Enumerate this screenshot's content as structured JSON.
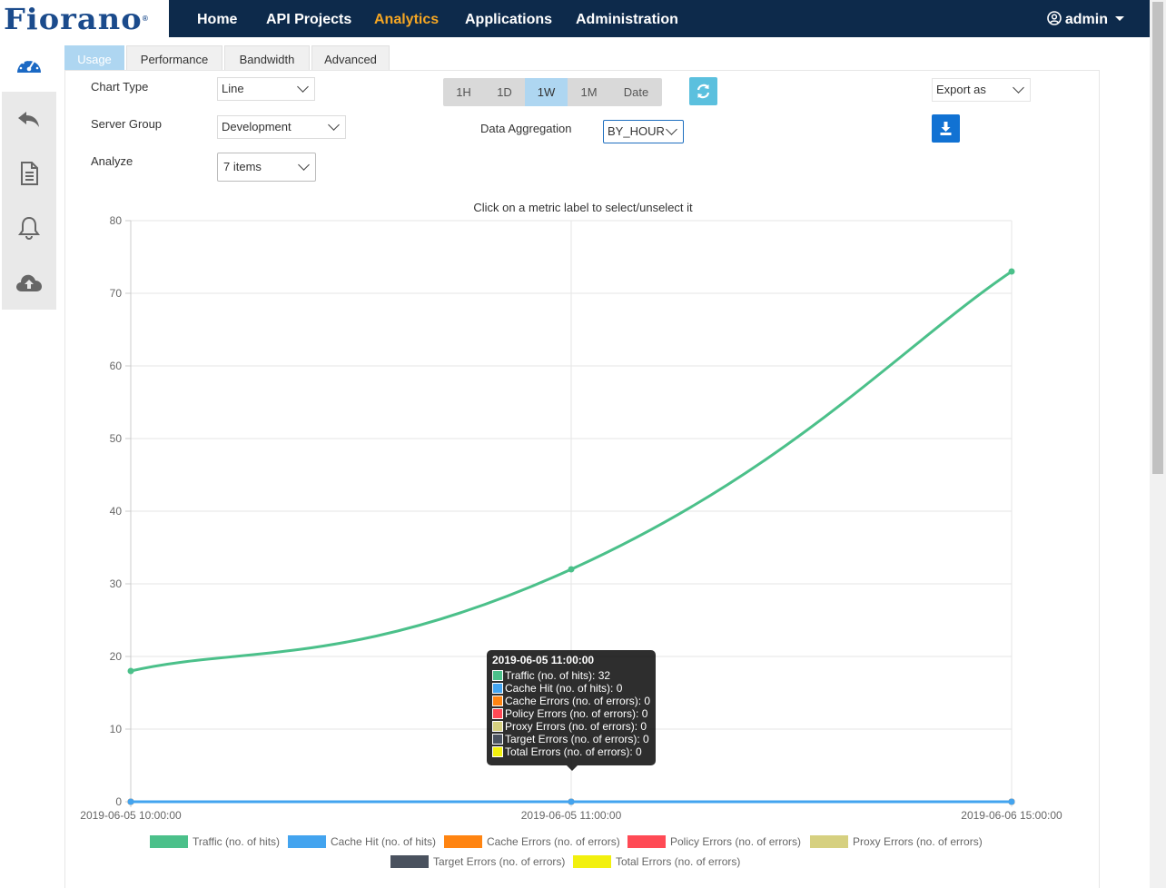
{
  "brand": {
    "logo": "Fiorano",
    "mark": "®"
  },
  "nav": {
    "items": [
      {
        "label": "Home"
      },
      {
        "label": "API Projects"
      },
      {
        "label": "Analytics",
        "active": true
      },
      {
        "label": "Applications"
      },
      {
        "label": "Administration"
      }
    ],
    "user": "admin"
  },
  "sidebar": {
    "top_icon": "dashboard-icon",
    "items": [
      "undo-icon",
      "document-icon",
      "bell-icon",
      "cloud-upload-icon"
    ]
  },
  "tabs": [
    {
      "label": "Usage",
      "active": true
    },
    {
      "label": "Performance"
    },
    {
      "label": "Bandwidth"
    },
    {
      "label": "Advanced"
    }
  ],
  "controls": {
    "chart_type_label": "Chart Type",
    "chart_type_value": "Line",
    "server_group_label": "Server Group",
    "server_group_value": "Development",
    "analyze_label": "Analyze",
    "analyze_value": "7 items",
    "ranges": [
      "1H",
      "1D",
      "1W",
      "1M",
      "Date"
    ],
    "active_range": "1W",
    "aggregation_label": "Data Aggregation",
    "aggregation_value": "BY_HOUR",
    "export_label": "Export as"
  },
  "chart_hint": "Click on a metric label to select/unselect it",
  "chart_data": {
    "type": "line",
    "x": [
      "2019-06-05 10:00:00",
      "2019-06-05 11:00:00",
      "2019-06-06 15:00:00"
    ],
    "ylim": [
      0,
      80
    ],
    "yticks": [
      0,
      10,
      20,
      30,
      40,
      50,
      60,
      70,
      80
    ],
    "grid": true,
    "legend_position": "bottom",
    "series": [
      {
        "name": "Traffic (no. of hits)",
        "color": "#4bc08a",
        "values": [
          18,
          32,
          73
        ]
      },
      {
        "name": "Cache Hit (no. of hits)",
        "color": "#43a4ef",
        "values": [
          0,
          0,
          0
        ]
      },
      {
        "name": "Cache Errors (no. of errors)",
        "color": "#ff8411",
        "values": [
          0,
          0,
          0
        ]
      },
      {
        "name": "Policy Errors (no. of errors)",
        "color": "#ff4a55",
        "values": [
          0,
          0,
          0
        ]
      },
      {
        "name": "Proxy Errors (no. of errors)",
        "color": "#d6d080",
        "values": [
          0,
          0,
          0
        ]
      },
      {
        "name": "Target Errors (no. of errors)",
        "color": "#4a525f",
        "values": [
          0,
          0,
          0
        ]
      },
      {
        "name": "Total Errors (no. of errors)",
        "color": "#f2f00e",
        "values": [
          0,
          0,
          0
        ]
      }
    ]
  },
  "tooltip": {
    "title": "2019-06-05 11:00:00",
    "rows": [
      "Traffic (no. of hits): 32",
      "Cache Hit (no. of hits): 0",
      "Cache Errors (no. of errors): 0",
      "Policy Errors (no. of errors): 0",
      "Proxy Errors (no. of errors): 0",
      "Target Errors (no. of errors): 0",
      "Total Errors (no. of errors): 0"
    ]
  }
}
